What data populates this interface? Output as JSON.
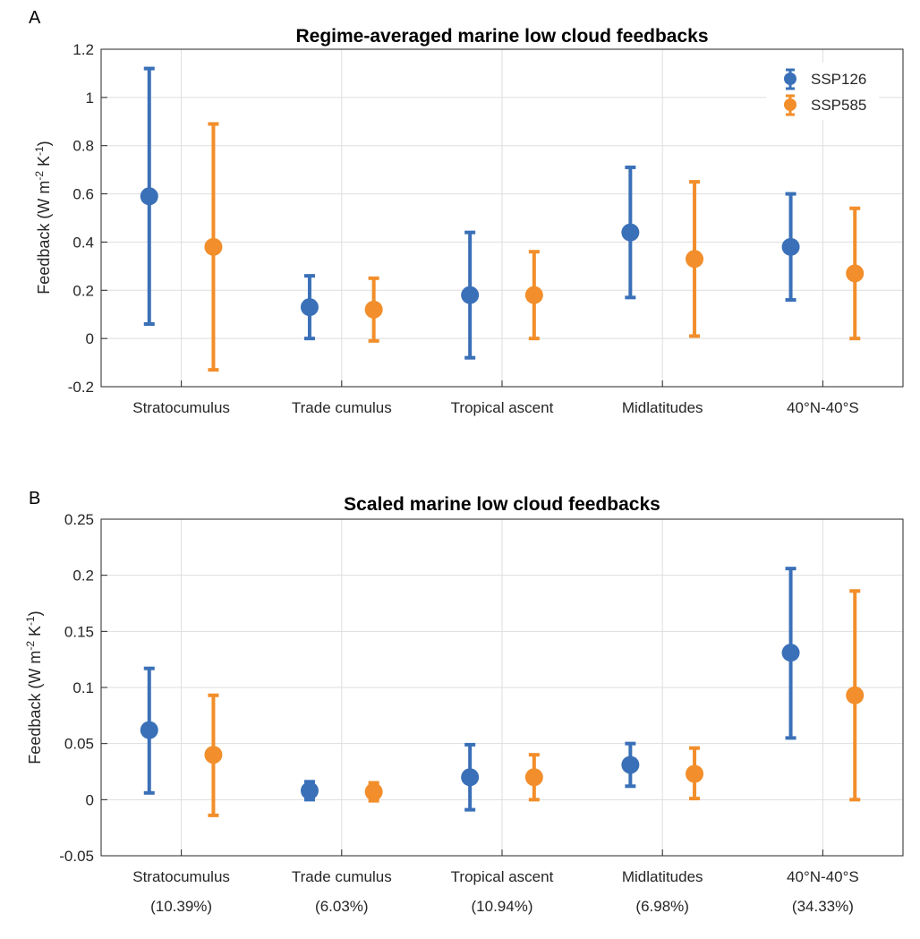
{
  "colors": {
    "ssp126": "#3a70b8",
    "ssp585": "#f28e2b"
  },
  "chart_data": [
    {
      "type": "errorbar",
      "panel_label": "A",
      "title": "Regime-averaged marine low cloud feedbacks",
      "ylabel_main": "Feedback (W m",
      "ylabel_sup1": "-2",
      "ylabel_mid": " K",
      "ylabel_sup2": "-1",
      "ylabel_end": ")",
      "ylim": [
        -0.2,
        1.2
      ],
      "yticks": [
        -0.2,
        0,
        0.2,
        0.4,
        0.6,
        0.8,
        1,
        1.2
      ],
      "ytick_labels": [
        "-0.2",
        "0",
        "0.2",
        "0.4",
        "0.6",
        "0.8",
        "1",
        "1.2"
      ],
      "categories": [
        "Stratocumulus",
        "Trade cumulus",
        "Tropical ascent",
        "Midlatitudes",
        "40°N-40°S"
      ],
      "subcategories": [],
      "grid": true,
      "legend_position": "top-right",
      "series": [
        {
          "name": "SSP126",
          "values": [
            0.59,
            0.13,
            0.18,
            0.44,
            0.38
          ],
          "lower": [
            0.06,
            0.0,
            -0.08,
            0.17,
            0.16
          ],
          "upper": [
            1.12,
            0.26,
            0.44,
            0.71,
            0.6
          ]
        },
        {
          "name": "SSP585",
          "values": [
            0.38,
            0.12,
            0.18,
            0.33,
            0.27
          ],
          "lower": [
            -0.13,
            -0.01,
            0.0,
            0.01,
            0.0
          ],
          "upper": [
            0.89,
            0.25,
            0.36,
            0.65,
            0.54
          ]
        }
      ]
    },
    {
      "type": "errorbar",
      "panel_label": "B",
      "title": "Scaled marine low cloud feedbacks",
      "ylabel_main": "Feedback (W m",
      "ylabel_sup1": "-2",
      "ylabel_mid": " K",
      "ylabel_sup2": "-1",
      "ylabel_end": ")",
      "ylim": [
        -0.05,
        0.25
      ],
      "yticks": [
        -0.05,
        0,
        0.05,
        0.1,
        0.15,
        0.2,
        0.25
      ],
      "ytick_labels": [
        "-0.05",
        "0",
        "0.05",
        "0.1",
        "0.15",
        "0.2",
        "0.25"
      ],
      "categories": [
        "Stratocumulus",
        "Trade cumulus",
        "Tropical ascent",
        "Midlatitudes",
        "40°N-40°S"
      ],
      "subcategories": [
        "(10.39%)",
        "(6.03%)",
        "(10.94%)",
        "(6.98%)",
        "(34.33%)"
      ],
      "grid": true,
      "series": [
        {
          "name": "SSP126",
          "values": [
            0.062,
            0.008,
            0.02,
            0.031,
            0.131
          ],
          "lower": [
            0.006,
            0.0,
            -0.009,
            0.012,
            0.055
          ],
          "upper": [
            0.117,
            0.016,
            0.049,
            0.05,
            0.206
          ]
        },
        {
          "name": "SSP585",
          "values": [
            0.04,
            0.007,
            0.02,
            0.023,
            0.093
          ],
          "lower": [
            -0.014,
            -0.001,
            0.0,
            0.001,
            0.0
          ],
          "upper": [
            0.093,
            0.015,
            0.04,
            0.046,
            0.186
          ]
        }
      ]
    }
  ]
}
